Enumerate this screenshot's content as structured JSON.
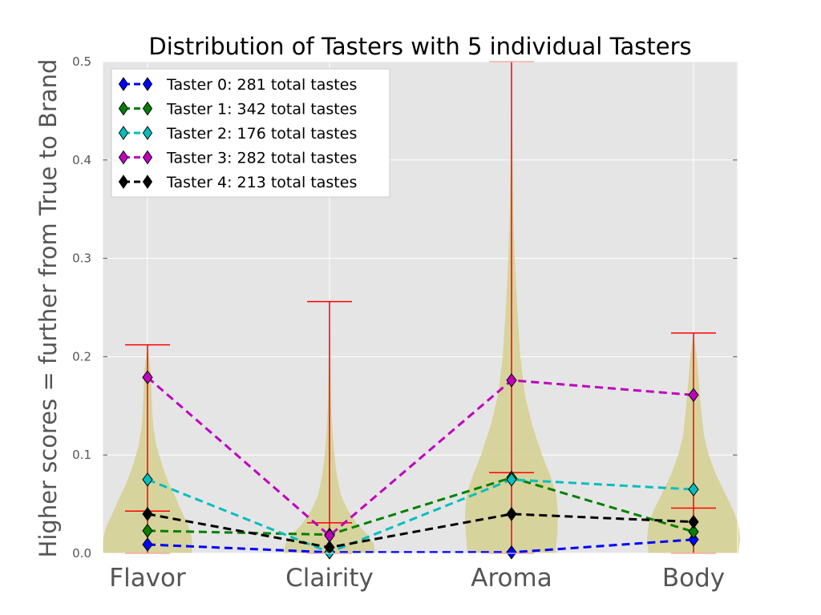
{
  "chart_data": {
    "type": "violin",
    "title": "Distribution of Tasters with 5 individual Tasters",
    "ylabel": "Higher scores = further from True to Brand",
    "xlabel": "",
    "categories": [
      "Flavor",
      "Clairity",
      "Aroma",
      "Body"
    ],
    "ylim": [
      0,
      0.5
    ],
    "yticks": [
      "0.0",
      "0.1",
      "0.2",
      "0.3",
      "0.4",
      "0.5"
    ],
    "grid": true,
    "legend_position": "top-left",
    "violins": [
      {
        "category": "Flavor",
        "min": 0.0,
        "max": 0.212,
        "median": 0.043
      },
      {
        "category": "Clairity",
        "min": 0.0,
        "max": 0.256,
        "median": 0.031
      },
      {
        "category": "Aroma",
        "min": 0.0,
        "max": 0.5,
        "median": 0.082
      },
      {
        "category": "Body",
        "min": 0.0,
        "max": 0.224,
        "median": 0.046
      }
    ],
    "series": [
      {
        "name": "Taster 0: 281 total tastes",
        "color": "#0000ff",
        "values": [
          0.009,
          0.001,
          0.001,
          0.014
        ]
      },
      {
        "name": "Taster 1: 342 total tastes",
        "color": "#008000",
        "values": [
          0.023,
          0.019,
          0.077,
          0.022
        ]
      },
      {
        "name": "Taster 2: 176 total tastes",
        "color": "#00bfbf",
        "values": [
          0.075,
          0.001,
          0.075,
          0.065
        ]
      },
      {
        "name": "Taster 3: 282 total tastes",
        "color": "#bf00bf",
        "values": [
          0.179,
          0.018,
          0.176,
          0.161
        ]
      },
      {
        "name": "Taster 4: 213 total tastes",
        "color": "#000000",
        "values": [
          0.04,
          0.006,
          0.04,
          0.032
        ]
      }
    ]
  }
}
